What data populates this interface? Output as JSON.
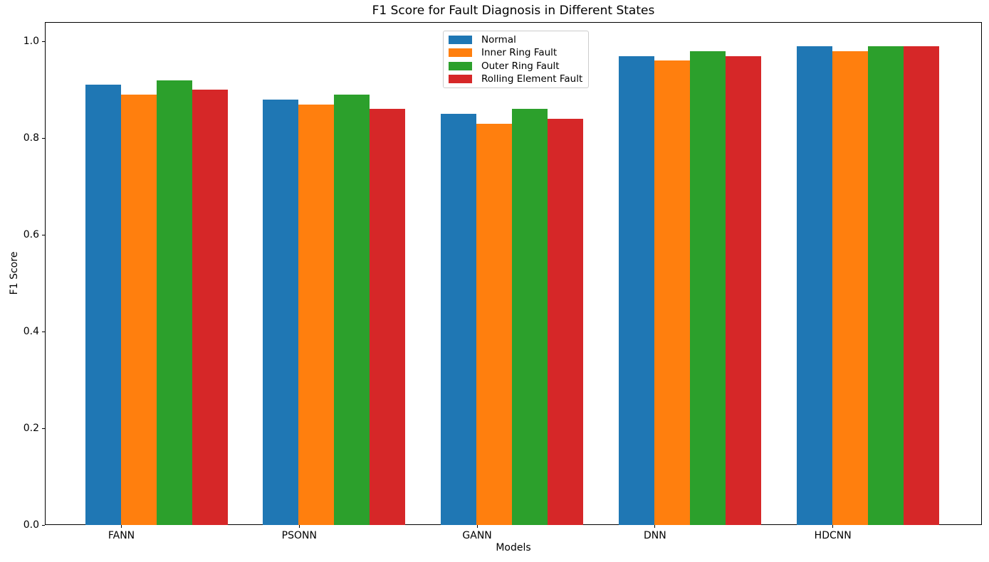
{
  "chart_data": {
    "type": "bar",
    "title": "F1 Score for Fault Diagnosis in Different States",
    "xlabel": "Models",
    "ylabel": "F1 Score",
    "categories": [
      "FANN",
      "PSONN",
      "GANN",
      "DNN",
      "HDCNN"
    ],
    "series": [
      {
        "name": "Normal",
        "color": "#1f77b4",
        "values": [
          0.91,
          0.88,
          0.85,
          0.97,
          0.99
        ]
      },
      {
        "name": "Inner Ring Fault",
        "color": "#ff7f0e",
        "values": [
          0.89,
          0.87,
          0.83,
          0.96,
          0.98
        ]
      },
      {
        "name": "Outer Ring Fault",
        "color": "#2ca02c",
        "values": [
          0.92,
          0.89,
          0.86,
          0.98,
          0.99
        ]
      },
      {
        "name": "Rolling Element Fault",
        "color": "#d62728",
        "values": [
          0.9,
          0.86,
          0.84,
          0.97,
          0.99
        ]
      }
    ],
    "y_ticks": [
      "0.0",
      "0.2",
      "0.4",
      "0.6",
      "0.8",
      "1.0"
    ],
    "ylim": [
      0,
      1.04
    ],
    "legend_position": "upper center",
    "grid": false,
    "axis_color": "#000000",
    "background_color": "#ffffff"
  }
}
